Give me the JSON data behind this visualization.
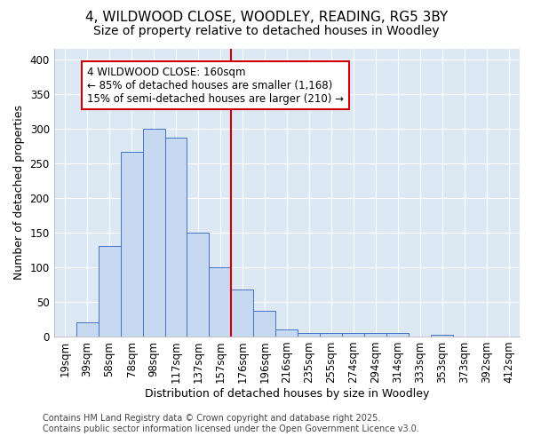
{
  "title_line1": "4, WILDWOOD CLOSE, WOODLEY, READING, RG5 3BY",
  "title_line2": "Size of property relative to detached houses in Woodley",
  "xlabel": "Distribution of detached houses by size in Woodley",
  "ylabel": "Number of detached properties",
  "footnote1": "Contains HM Land Registry data © Crown copyright and database right 2025.",
  "footnote2": "Contains public sector information licensed under the Open Government Licence v3.0.",
  "bin_labels": [
    "19sqm",
    "39sqm",
    "58sqm",
    "78sqm",
    "98sqm",
    "117sqm",
    "137sqm",
    "157sqm",
    "176sqm",
    "196sqm",
    "216sqm",
    "235sqm",
    "255sqm",
    "274sqm",
    "294sqm",
    "314sqm",
    "333sqm",
    "353sqm",
    "373sqm",
    "392sqm",
    "412sqm"
  ],
  "bar_values": [
    0,
    20,
    130,
    267,
    300,
    287,
    150,
    100,
    68,
    37,
    10,
    5,
    5,
    5,
    5,
    5,
    0,
    3,
    0,
    0,
    0
  ],
  "bar_color": "#c6d9f0",
  "bar_edge_color": "#4472c4",
  "annotation_text": "4 WILDWOOD CLOSE: 160sqm\n← 85% of detached houses are smaller (1,168)\n15% of semi-detached houses are larger (210) →",
  "annotation_box_edge": "#cc0000",
  "vline_x": 7.5,
  "vline_color": "#cc0000",
  "ylim": [
    0,
    415
  ],
  "yticks": [
    0,
    50,
    100,
    150,
    200,
    250,
    300,
    350,
    400
  ],
  "fig_background_color": "#ffffff",
  "plot_background": "#dde8f5",
  "grid_color": "#ffffff",
  "title_fontsize": 11,
  "subtitle_fontsize": 10,
  "annotation_fontsize": 8.5,
  "axis_label_fontsize": 9,
  "tick_fontsize": 8.5,
  "footnote_fontsize": 7
}
